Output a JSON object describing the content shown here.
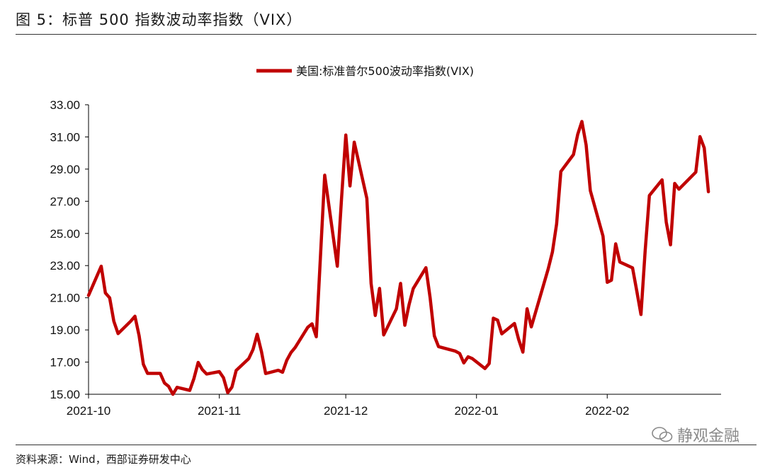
{
  "figure": {
    "title": "图 5：标普 500 指数波动率指数（VIX）",
    "source": "资料来源：Wind，西部证券研发中心",
    "watermark": "静观金融"
  },
  "colors": {
    "series": "#C00000",
    "axis": "#000000",
    "text": "#111111"
  },
  "chart_data": {
    "type": "line",
    "legend_position": "top-center",
    "grid": false,
    "ylim": [
      15,
      33
    ],
    "y_ticks": [
      "15.00",
      "17.00",
      "19.00",
      "21.00",
      "23.00",
      "25.00",
      "27.00",
      "29.00",
      "31.00",
      "33.00"
    ],
    "x_ticks": [
      "2021-10",
      "2021-11",
      "2021-12",
      "2022-01",
      "2022-02"
    ],
    "x_tick_dates": [
      "2021-10-01",
      "2021-11-01",
      "2021-12-01",
      "2022-01-01",
      "2022-02-01"
    ],
    "xlim": [
      "2021-10-01",
      "2022-02-28"
    ],
    "series": [
      {
        "name": "美国:标准普尔500波动率指数(VIX)",
        "points": [
          [
            "2021-10-01",
            21.15
          ],
          [
            "2021-10-04",
            22.96
          ],
          [
            "2021-10-05",
            21.3
          ],
          [
            "2021-10-06",
            21.0
          ],
          [
            "2021-10-07",
            19.54
          ],
          [
            "2021-10-08",
            18.77
          ],
          [
            "2021-10-11",
            19.54
          ],
          [
            "2021-10-12",
            19.85
          ],
          [
            "2021-10-13",
            18.64
          ],
          [
            "2021-10-14",
            16.86
          ],
          [
            "2021-10-15",
            16.3
          ],
          [
            "2021-10-18",
            16.3
          ],
          [
            "2021-10-19",
            15.7
          ],
          [
            "2021-10-20",
            15.49
          ],
          [
            "2021-10-21",
            15.0
          ],
          [
            "2021-10-22",
            15.43
          ],
          [
            "2021-10-25",
            15.24
          ],
          [
            "2021-10-26",
            15.98
          ],
          [
            "2021-10-27",
            16.98
          ],
          [
            "2021-10-28",
            16.53
          ],
          [
            "2021-10-29",
            16.26
          ],
          [
            "2021-11-01",
            16.41
          ],
          [
            "2021-11-02",
            16.03
          ],
          [
            "2021-11-03",
            15.1
          ],
          [
            "2021-11-04",
            15.44
          ],
          [
            "2021-11-05",
            16.48
          ],
          [
            "2021-11-08",
            17.22
          ],
          [
            "2021-11-09",
            17.78
          ],
          [
            "2021-11-10",
            18.73
          ],
          [
            "2021-11-11",
            17.66
          ],
          [
            "2021-11-12",
            16.29
          ],
          [
            "2021-11-15",
            16.49
          ],
          [
            "2021-11-16",
            16.37
          ],
          [
            "2021-11-17",
            17.11
          ],
          [
            "2021-11-18",
            17.59
          ],
          [
            "2021-11-19",
            17.91
          ],
          [
            "2021-11-22",
            19.17
          ],
          [
            "2021-11-23",
            19.38
          ],
          [
            "2021-11-24",
            18.58
          ],
          [
            "2021-11-26",
            28.62
          ],
          [
            "2021-11-29",
            22.96
          ],
          [
            "2021-11-30",
            27.19
          ],
          [
            "2021-12-01",
            31.12
          ],
          [
            "2021-12-02",
            27.95
          ],
          [
            "2021-12-03",
            30.67
          ],
          [
            "2021-12-06",
            27.18
          ],
          [
            "2021-12-07",
            21.89
          ],
          [
            "2021-12-08",
            19.9
          ],
          [
            "2021-12-09",
            21.58
          ],
          [
            "2021-12-10",
            18.69
          ],
          [
            "2021-12-13",
            20.31
          ],
          [
            "2021-12-14",
            21.89
          ],
          [
            "2021-12-15",
            19.29
          ],
          [
            "2021-12-16",
            20.57
          ],
          [
            "2021-12-17",
            21.57
          ],
          [
            "2021-12-20",
            22.87
          ],
          [
            "2021-12-21",
            21.01
          ],
          [
            "2021-12-22",
            18.63
          ],
          [
            "2021-12-23",
            17.96
          ],
          [
            "2021-12-27",
            17.68
          ],
          [
            "2021-12-28",
            17.54
          ],
          [
            "2021-12-29",
            16.95
          ],
          [
            "2021-12-30",
            17.33
          ],
          [
            "2021-12-31",
            17.22
          ],
          [
            "2022-01-03",
            16.6
          ],
          [
            "2022-01-04",
            16.91
          ],
          [
            "2022-01-05",
            19.73
          ],
          [
            "2022-01-06",
            19.61
          ],
          [
            "2022-01-07",
            18.76
          ],
          [
            "2022-01-10",
            19.4
          ],
          [
            "2022-01-11",
            18.41
          ],
          [
            "2022-01-12",
            17.62
          ],
          [
            "2022-01-13",
            20.31
          ],
          [
            "2022-01-14",
            19.19
          ],
          [
            "2022-01-18",
            22.79
          ],
          [
            "2022-01-19",
            23.85
          ],
          [
            "2022-01-20",
            25.59
          ],
          [
            "2022-01-21",
            28.85
          ],
          [
            "2022-01-24",
            29.9
          ],
          [
            "2022-01-25",
            31.16
          ],
          [
            "2022-01-26",
            31.96
          ],
          [
            "2022-01-27",
            30.49
          ],
          [
            "2022-01-28",
            27.66
          ],
          [
            "2022-01-31",
            24.83
          ],
          [
            "2022-02-01",
            21.96
          ],
          [
            "2022-02-02",
            22.09
          ],
          [
            "2022-02-03",
            24.35
          ],
          [
            "2022-02-04",
            23.22
          ],
          [
            "2022-02-07",
            22.86
          ],
          [
            "2022-02-08",
            21.44
          ],
          [
            "2022-02-09",
            19.96
          ],
          [
            "2022-02-10",
            23.91
          ],
          [
            "2022-02-11",
            27.36
          ],
          [
            "2022-02-14",
            28.33
          ],
          [
            "2022-02-15",
            25.7
          ],
          [
            "2022-02-16",
            24.29
          ],
          [
            "2022-02-17",
            28.11
          ],
          [
            "2022-02-18",
            27.75
          ],
          [
            "2022-02-22",
            28.81
          ],
          [
            "2022-02-23",
            31.02
          ],
          [
            "2022-02-24",
            30.32
          ],
          [
            "2022-02-25",
            27.59
          ]
        ]
      }
    ]
  }
}
